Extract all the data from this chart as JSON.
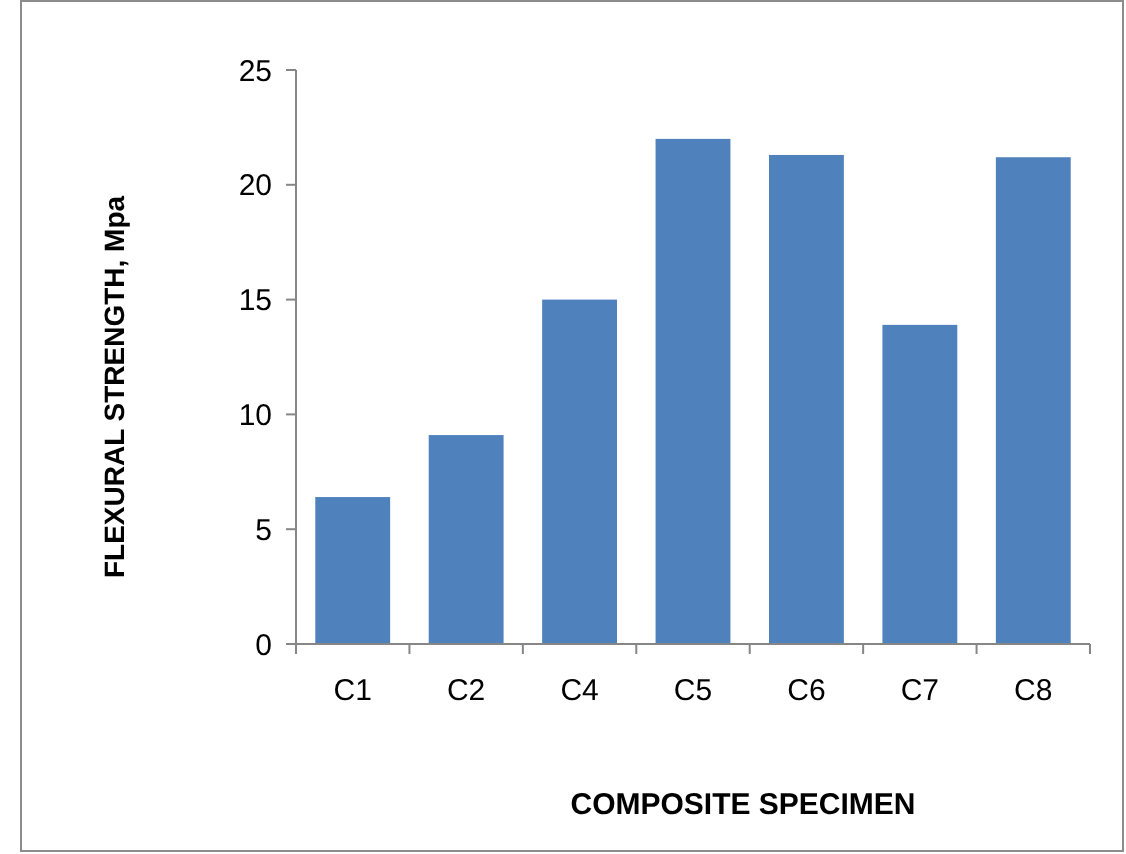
{
  "chart_data": {
    "type": "bar",
    "xlabel": "COMPOSITE SPECIMEN",
    "ylabel": "FLEXURAL STRENGTH, Mpa",
    "categories": [
      "C1",
      "C2",
      "C4",
      "C5",
      "C6",
      "C7",
      "C8"
    ],
    "values": [
      6.4,
      9.1,
      15.0,
      22.0,
      21.3,
      13.9,
      21.2
    ],
    "color": "#4f81bd",
    "ylim": [
      0,
      25
    ],
    "yticks": [
      0,
      5,
      10,
      15,
      20,
      25
    ],
    "grid": false
  }
}
